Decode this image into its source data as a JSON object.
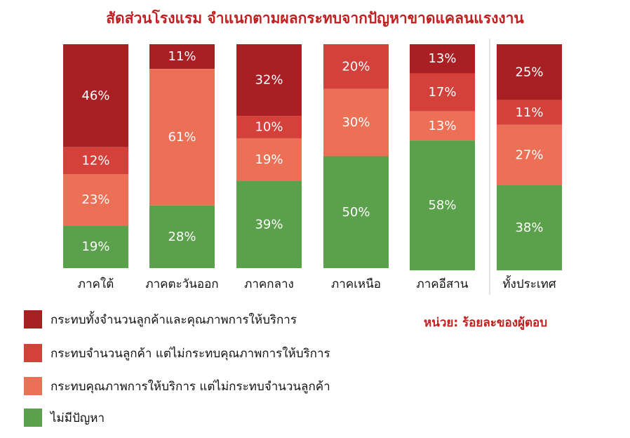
{
  "title": "สัดส่วนโรงแรม จำแนกตามผลกระทบจากปัญหาขาดแคลนแรงงาน",
  "unit_note": "หน่วย: ร้อยละของผู้ตอบ",
  "chart_data": {
    "type": "bar",
    "stacked": true,
    "percent_stacked": true,
    "title": "สัดส่วนโรงแรม จำแนกตามผลกระทบจากปัญหาขาดแคลนแรงงาน",
    "categories": [
      "ภาคใต้",
      "ภาคตะวันออก",
      "ภาคกลาง",
      "ภาคเหนือ",
      "ภาคอีสาน",
      "ทั้งประเทศ"
    ],
    "series": [
      {
        "name": "กระทบทั้งจำนวนลูกค้าและคุณภาพการให้บริการ",
        "color": "#a92024",
        "values": [
          46,
          11,
          32,
          0,
          13,
          25
        ]
      },
      {
        "name": "กระทบจำนวนลูกค้า แต่ไม่กระทบคุณภาพการให้บริการ",
        "color": "#d4413a",
        "values": [
          12,
          0,
          10,
          20,
          17,
          11
        ]
      },
      {
        "name": "กระทบคุณภาพการให้บริการ แต่ไม่กระทบจำนวนลูกค้า",
        "color": "#ec7055",
        "values": [
          23,
          61,
          19,
          30,
          13,
          27
        ]
      },
      {
        "name": "ไม่มีปัญหา",
        "color": "#5ba04b",
        "values": [
          19,
          28,
          39,
          50,
          58,
          38
        ]
      }
    ],
    "ylim": [
      0,
      100
    ],
    "value_suffix": "%",
    "legend_position": "bottom-left",
    "grid": false
  }
}
